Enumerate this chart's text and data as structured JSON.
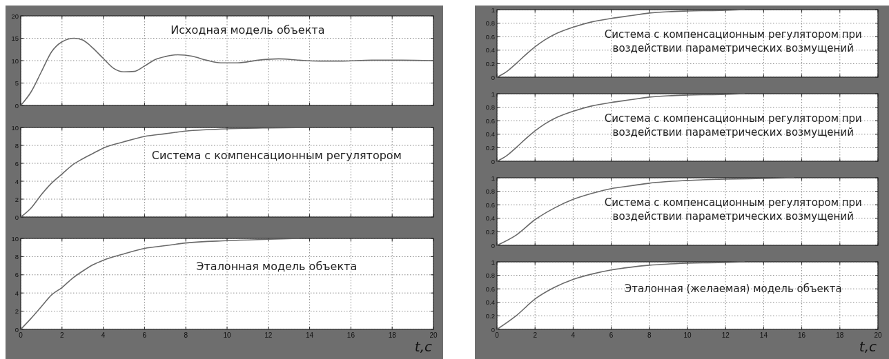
{
  "chart_data": [
    {
      "type": "line",
      "title": "Исходная модель объекта",
      "xlim": [
        0,
        20
      ],
      "xticks": [
        0,
        2,
        4,
        6,
        8,
        10,
        12,
        14,
        16,
        18,
        20
      ],
      "ylim": [
        0,
        20
      ],
      "yticks": [
        0,
        5,
        10,
        15,
        20
      ],
      "grid": true,
      "tick_labels": "y",
      "series": [
        {
          "color": "#6a6a6a",
          "x": [
            0,
            0.5,
            1,
            1.5,
            2,
            2.6,
            3,
            3.5,
            4,
            4.5,
            5,
            5.5,
            6,
            6.5,
            7,
            7.6,
            8.3,
            9,
            9.7,
            10.5,
            11.5,
            12.5,
            13.5,
            14.5,
            15.5,
            17,
            18.5,
            20
          ],
          "values": [
            0,
            3,
            7.5,
            12,
            14.2,
            15,
            14.6,
            12.8,
            10.5,
            8.3,
            7.5,
            7.6,
            8.8,
            10.2,
            10.9,
            11.3,
            11,
            10.1,
            9.5,
            9.5,
            10.1,
            10.4,
            10.1,
            9.9,
            9.9,
            10.1,
            10.1,
            10
          ]
        }
      ]
    },
    {
      "type": "line",
      "title": "Система с компенсационным регулятором",
      "xlim": [
        0,
        20
      ],
      "xticks": [
        0,
        2,
        4,
        6,
        8,
        10,
        12,
        14,
        16,
        18,
        20
      ],
      "ylim": [
        0,
        10
      ],
      "yticks": [
        0,
        2,
        4,
        6,
        8,
        10
      ],
      "grid": true,
      "tick_labels": "y",
      "series": [
        {
          "color": "#6a6a6a",
          "x": [
            0,
            0.5,
            1,
            1.5,
            2,
            2.5,
            3,
            3.5,
            4,
            5,
            6,
            7,
            8,
            9,
            10,
            12,
            14
          ],
          "values": [
            0,
            1,
            2.5,
            3.8,
            4.8,
            5.8,
            6.5,
            7.1,
            7.7,
            8.4,
            9,
            9.3,
            9.6,
            9.75,
            9.85,
            9.95,
            10
          ]
        }
      ]
    },
    {
      "type": "line",
      "title": "Эталонная модель объекта",
      "xlabel": "t,c",
      "xlim": [
        0,
        20
      ],
      "xticks": [
        0,
        2,
        4,
        6,
        8,
        10,
        12,
        14,
        16,
        18,
        20
      ],
      "ylim": [
        0,
        10
      ],
      "yticks": [
        0,
        2,
        4,
        6,
        8,
        10
      ],
      "grid": true,
      "series": [
        {
          "color": "#6a6a6a",
          "x": [
            0,
            0.5,
            1,
            1.5,
            2,
            2.5,
            3,
            3.5,
            4,
            5,
            6,
            7,
            8,
            10,
            12,
            13.5
          ],
          "values": [
            0,
            1.2,
            2.5,
            3.8,
            4.6,
            5.6,
            6.4,
            7.1,
            7.6,
            8.3,
            8.9,
            9.2,
            9.5,
            9.75,
            9.9,
            10
          ]
        }
      ]
    },
    {
      "type": "line",
      "title": "Система с компенсационным регулятором при воздействии параметрических возмущений",
      "xlim": [
        0,
        20
      ],
      "xticks": [
        0,
        2,
        4,
        6,
        8,
        10,
        12,
        14,
        16,
        18,
        20
      ],
      "ylim": [
        0,
        1
      ],
      "yticks": [
        0,
        0.2,
        0.4,
        0.6,
        0.8,
        1
      ],
      "grid": true,
      "tick_labels": "y",
      "series": [
        {
          "color": "#6a6a6a",
          "x": [
            0,
            0.5,
            1,
            1.5,
            2,
            2.5,
            3,
            4,
            5,
            6,
            7,
            8,
            9,
            10,
            12,
            13
          ],
          "values": [
            0,
            0.08,
            0.2,
            0.33,
            0.45,
            0.55,
            0.63,
            0.74,
            0.82,
            0.87,
            0.91,
            0.95,
            0.97,
            0.98,
            0.99,
            1
          ]
        }
      ]
    },
    {
      "type": "line",
      "title": "Система с компенсационным регулятором при воздействии параметрических возмущений",
      "xlim": [
        0,
        20
      ],
      "xticks": [
        0,
        2,
        4,
        6,
        8,
        10,
        12,
        14,
        16,
        18,
        20
      ],
      "ylim": [
        0,
        1
      ],
      "yticks": [
        0,
        0.2,
        0.4,
        0.6,
        0.8,
        1
      ],
      "grid": true,
      "tick_labels": "y",
      "series": [
        {
          "color": "#6a6a6a",
          "x": [
            0,
            0.5,
            1,
            1.5,
            2,
            2.5,
            3,
            4,
            5,
            6,
            7,
            8,
            9,
            10,
            12,
            13
          ],
          "values": [
            0,
            0.08,
            0.2,
            0.33,
            0.45,
            0.55,
            0.63,
            0.74,
            0.82,
            0.87,
            0.91,
            0.95,
            0.97,
            0.98,
            0.99,
            1
          ]
        }
      ]
    },
    {
      "type": "line",
      "title": "Система с компенсационным регулятором при воздействии параметрических возмущений",
      "xlim": [
        0,
        20
      ],
      "xticks": [
        0,
        2,
        4,
        6,
        8,
        10,
        12,
        14,
        16,
        18,
        20
      ],
      "ylim": [
        0,
        1
      ],
      "yticks": [
        0,
        0.2,
        0.4,
        0.6,
        0.8,
        1
      ],
      "grid": true,
      "tick_labels": "y",
      "series": [
        {
          "color": "#6a6a6a",
          "x": [
            0,
            1,
            2,
            3,
            4,
            5,
            6,
            7,
            8,
            10,
            12,
            14,
            15.6
          ],
          "values": [
            0,
            0.15,
            0.38,
            0.55,
            0.68,
            0.77,
            0.84,
            0.88,
            0.92,
            0.96,
            0.98,
            0.99,
            1
          ]
        }
      ]
    },
    {
      "type": "line",
      "title": "Эталонная (желаемая) модель объекта",
      "xlabel": "t,c",
      "xlim": [
        0,
        20
      ],
      "xticks": [
        0,
        2,
        4,
        6,
        8,
        10,
        12,
        14,
        16,
        18,
        20
      ],
      "ylim": [
        0,
        1
      ],
      "yticks": [
        0,
        0.2,
        0.4,
        0.6,
        0.8,
        1
      ],
      "grid": true,
      "series": [
        {
          "color": "#6a6a6a",
          "x": [
            0,
            1,
            2,
            3,
            4,
            5,
            6,
            7,
            8,
            10,
            12,
            13
          ],
          "values": [
            0,
            0.2,
            0.45,
            0.62,
            0.74,
            0.82,
            0.88,
            0.92,
            0.95,
            0.98,
            0.99,
            1
          ]
        }
      ]
    }
  ]
}
